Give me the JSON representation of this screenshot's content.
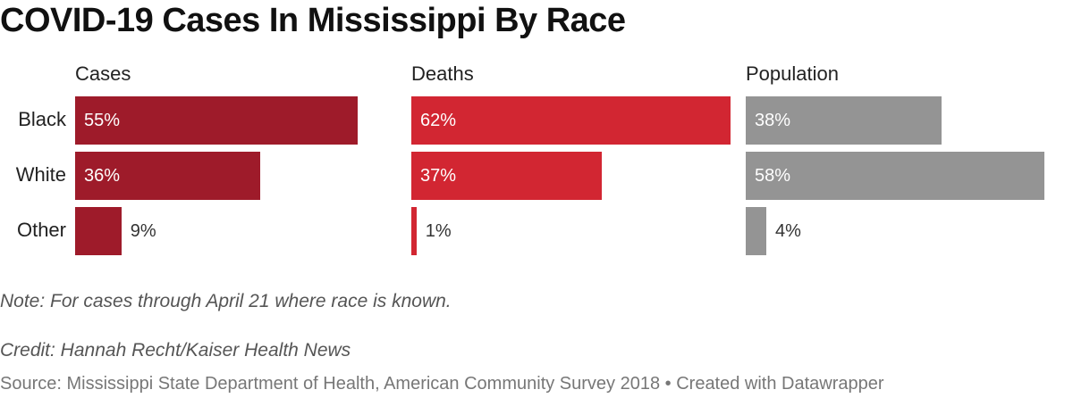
{
  "title": "COVID-19 Cases In Mississippi By Race",
  "chart_data": {
    "type": "bar",
    "orientation": "horizontal",
    "categories": [
      "Black",
      "White",
      "Other"
    ],
    "series": [
      {
        "name": "Cases",
        "values": [
          55,
          36,
          9
        ],
        "labels": [
          "55%",
          "36%",
          "9%"
        ],
        "color": "#9e1b2a"
      },
      {
        "name": "Deaths",
        "values": [
          62,
          37,
          1
        ],
        "labels": [
          "62%",
          "37%",
          "1%"
        ],
        "color": "#d22632"
      },
      {
        "name": "Population",
        "values": [
          38,
          58,
          4
        ],
        "labels": [
          "38%",
          "58%",
          "4%"
        ],
        "color": "#949494"
      }
    ],
    "unit": "%"
  },
  "note": "Note: For cases through April 21 where race is known.",
  "credit": "Credit: Hannah Recht/Kaiser Health News",
  "source": "Source: Mississippi State Department of Health, American Community Survey 2018 • Created with Datawrapper"
}
